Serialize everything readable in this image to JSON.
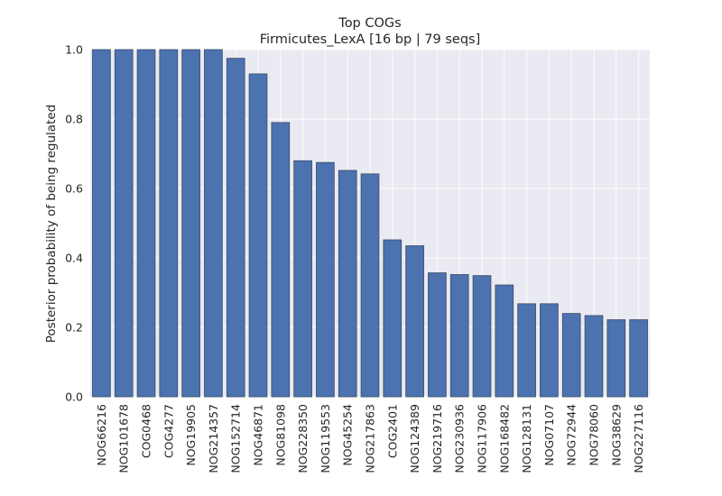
{
  "chart_data": {
    "type": "bar",
    "title": "Top COGs",
    "subtitle": "Firmicutes_LexA [16 bp | 79 seqs]",
    "xlabel": "",
    "ylabel": "Posterior probability of being regulated",
    "ylim": [
      0,
      1.0
    ],
    "yticks": [
      "0.0",
      "0.2",
      "0.4",
      "0.6",
      "0.8",
      "1.0"
    ],
    "grid": true,
    "colors": {
      "bar": "#4c72b0",
      "bar_edge": "#3a4a66",
      "background": "#eaeaf2",
      "grid": "#ffffff"
    },
    "categories": [
      "NOG66216",
      "NOG101678",
      "COG0468",
      "COG4277",
      "NOG19905",
      "NOG214357",
      "NOG152714",
      "NOG46871",
      "NOG81098",
      "NOG228350",
      "NOG119553",
      "NOG45254",
      "NOG217863",
      "COG2401",
      "NOG124389",
      "NOG219716",
      "NOG230936",
      "NOG117906",
      "NOG168482",
      "NOG128131",
      "NOG07107",
      "NOG72944",
      "NOG78060",
      "NOG38629",
      "NOG227116"
    ],
    "values": [
      1.0,
      1.0,
      1.0,
      1.0,
      1.0,
      1.0,
      0.975,
      0.93,
      0.79,
      0.68,
      0.675,
      0.652,
      0.642,
      0.452,
      0.435,
      0.357,
      0.352,
      0.349,
      0.322,
      0.268,
      0.268,
      0.24,
      0.234,
      0.222,
      0.222
    ]
  }
}
